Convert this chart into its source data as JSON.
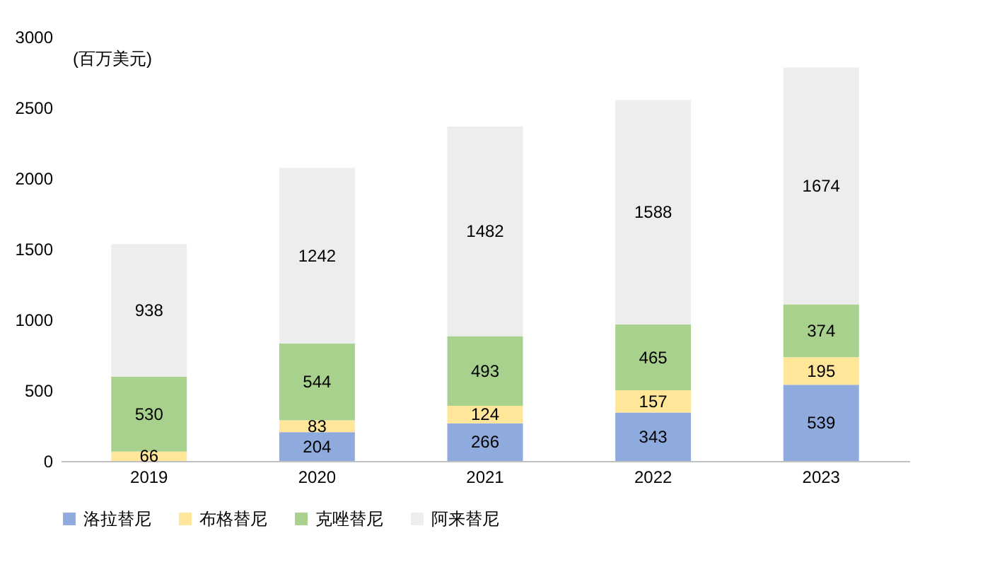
{
  "chart_data": {
    "type": "bar",
    "stacked": true,
    "ylabel": "(百万美元)",
    "categories": [
      "2019",
      "2020",
      "2021",
      "2022",
      "2023"
    ],
    "series": [
      {
        "name": "洛拉替尼",
        "color": "#8faadc",
        "values": [
          null,
          204,
          266,
          343,
          539
        ]
      },
      {
        "name": "布格替尼",
        "color": "#ffe699",
        "values": [
          66,
          83,
          124,
          157,
          195
        ]
      },
      {
        "name": "克唑替尼",
        "color": "#a9d18e",
        "values": [
          530,
          544,
          493,
          465,
          374
        ]
      },
      {
        "name": "阿来替尼",
        "color": "#ededed",
        "values": [
          938,
          1242,
          1482,
          1588,
          1674
        ]
      }
    ],
    "ylim": [
      0,
      3000
    ],
    "yticks": [
      0,
      500,
      1000,
      1500,
      2000,
      2500,
      3000
    ],
    "data_labels": true,
    "legend": "bottom",
    "grid": false
  }
}
